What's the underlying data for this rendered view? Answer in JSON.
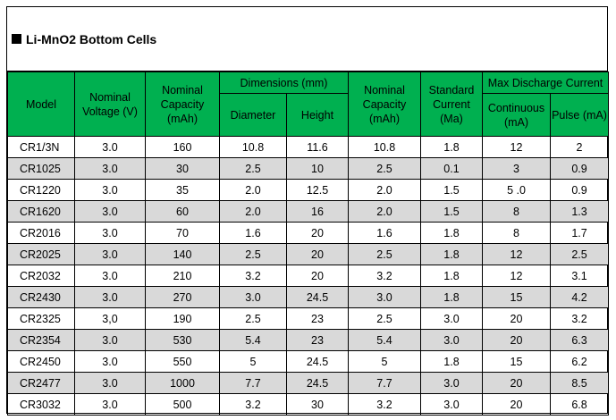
{
  "title": "Li-MnO2 Bottom Cells",
  "headers": {
    "model": "Model",
    "nominal_voltage": "Nominal Voltage (V)",
    "nominal_capacity": "Nominal Capacity (mAh)",
    "dimensions_group": "Dimensions (mm)",
    "diameter": "Diameter",
    "height": "Height",
    "nominal_capacity_2": "Nominal Capacity (mAh)",
    "standard_current": "Standard Current (Ma)",
    "max_discharge_group": "Max Discharge Current",
    "continuous": "Continuous (mA)",
    "pulse": "Pulse (mA)"
  },
  "rows": [
    [
      "CR1/3N",
      "3.0",
      "160",
      "10.8",
      "11.6",
      "10.8",
      "1.8",
      "12",
      "2"
    ],
    [
      "CR1025",
      "3.0",
      "30",
      "2.5",
      "10",
      "2.5",
      "0.1",
      "3",
      "0.9"
    ],
    [
      "CR1220",
      "3.0",
      "35",
      "2.0",
      "12.5",
      "2.0",
      "1.5",
      "5 .0",
      "0.9"
    ],
    [
      "CR1620",
      "3.0",
      "60",
      "2.0",
      "16",
      "2.0",
      "1.5",
      "8",
      "1.3"
    ],
    [
      "CR2016",
      "3.0",
      "70",
      "1.6",
      "20",
      "1.6",
      "1.8",
      "8",
      "1.7"
    ],
    [
      "CR2025",
      "3.0",
      "140",
      "2.5",
      "20",
      "2.5",
      "1.8",
      "12",
      "2.5"
    ],
    [
      "CR2032",
      "3.0",
      "210",
      "3.2",
      "20",
      "3.2",
      "1.8",
      "12",
      "3.1"
    ],
    [
      "CR2430",
      "3.0",
      "270",
      "3.0",
      "24.5",
      "3.0",
      "1.8",
      "15",
      "4.2"
    ],
    [
      "CR2325",
      "3,0",
      "190",
      "2.5",
      "23",
      "2.5",
      "3.0",
      "20",
      "3.2"
    ],
    [
      "CR2354",
      "3.0",
      "530",
      "5.4",
      "23",
      "5.4",
      "3.0",
      "20",
      "6.3"
    ],
    [
      "CR2450",
      "3.0",
      "550",
      "5",
      "24.5",
      "5",
      "1.8",
      "15",
      "6.2"
    ],
    [
      "CR2477",
      "3.0",
      "1000",
      "7.7",
      "24.5",
      "7.7",
      "3.0",
      "20",
      "8.5"
    ],
    [
      "CR3032",
      "3.0",
      "500",
      "3.2",
      "30",
      "3.2",
      "3.0",
      "20",
      "6.8"
    ]
  ],
  "colors": {
    "header_bg": "#00b050",
    "alt_row_bg": "#d9d9d9"
  }
}
